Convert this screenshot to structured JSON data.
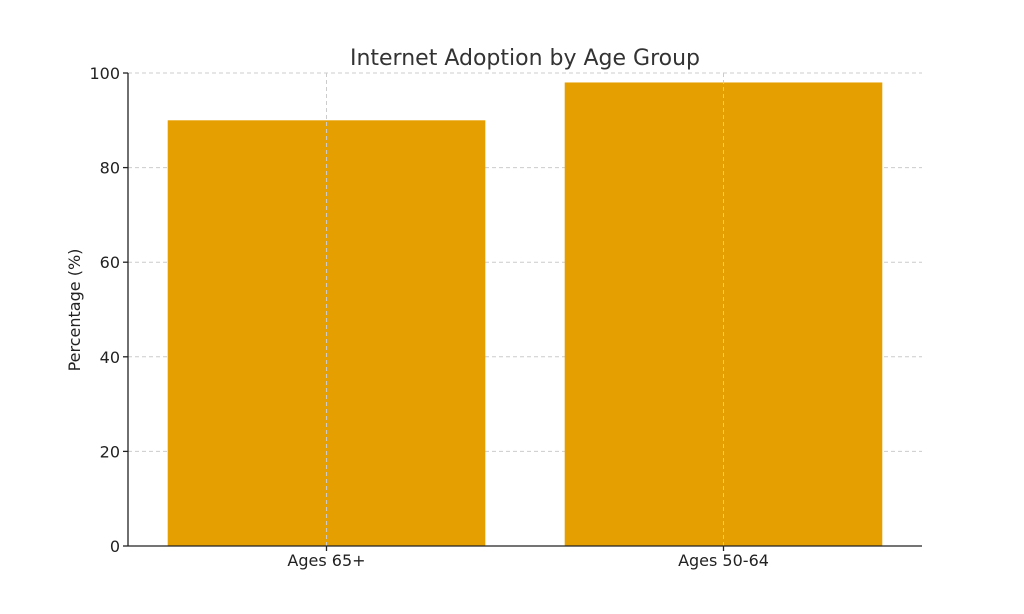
{
  "chart_data": {
    "type": "bar",
    "title": "Internet Adoption by Age Group",
    "xlabel": "",
    "ylabel": "Percentage (%)",
    "categories": [
      "Ages 65+",
      "Ages 50-64"
    ],
    "values": [
      90,
      98
    ],
    "ylim": [
      0,
      100
    ],
    "yticks": [
      0,
      20,
      40,
      60,
      80,
      100
    ],
    "grid": true,
    "legend": "none",
    "bar_color": "#E69F00"
  }
}
